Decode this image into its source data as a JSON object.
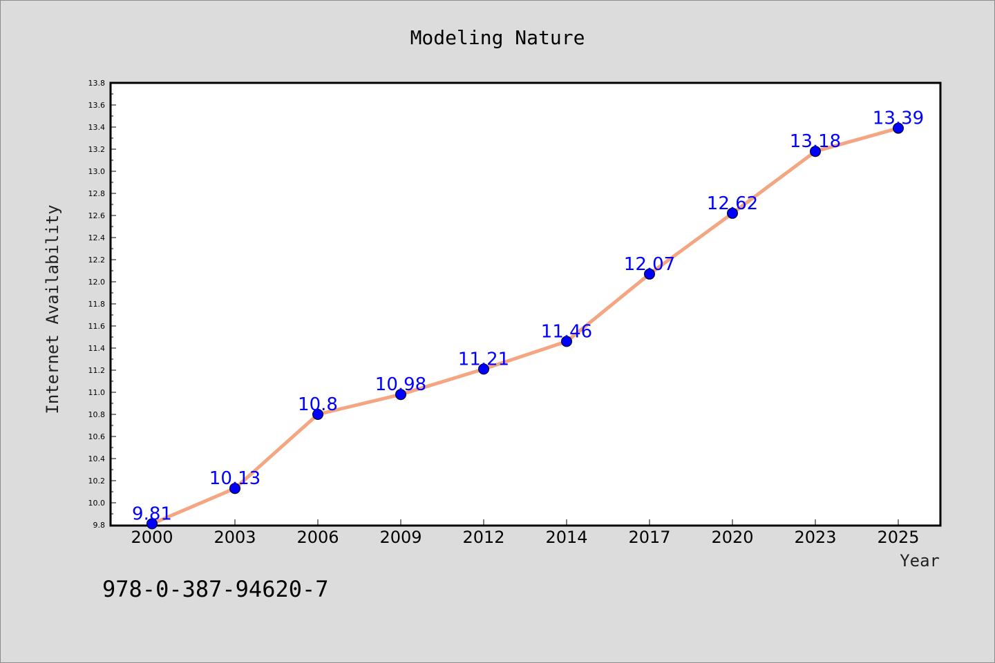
{
  "chart_data": {
    "type": "line",
    "title": "Modeling Nature",
    "xlabel": "Year",
    "ylabel": "Internet Availability",
    "categories": [
      "2000",
      "2003",
      "2006",
      "2009",
      "2012",
      "2014",
      "2017",
      "2020",
      "2023",
      "2025"
    ],
    "series": [
      {
        "values": [
          9.81,
          10.13,
          10.8,
          10.98,
          11.21,
          11.46,
          12.07,
          12.62,
          13.18,
          13.39
        ]
      }
    ],
    "data_labels": [
      "9.81",
      "10.13",
      "10.8",
      "10.98",
      "11.21",
      "11.46",
      "12.07",
      "12.62",
      "13.18",
      "13.39"
    ],
    "ylim": [
      9.8,
      13.8
    ],
    "yticks": [
      "9.8",
      "10.0",
      "10.2",
      "10.4",
      "10.6",
      "10.8",
      "11.0",
      "11.2",
      "11.4",
      "11.6",
      "11.8",
      "12.0",
      "12.2",
      "12.4",
      "12.6",
      "12.8",
      "13.0",
      "13.2",
      "13.4",
      "13.6",
      "13.8"
    ],
    "grid": false,
    "line_color": "#f4a582",
    "marker_color": "#0000ff",
    "label_color": "#0000ff",
    "background_color": "#dcdcdc",
    "plot_background": "#ffffff"
  },
  "footnote": "978-0-387-94620-7"
}
